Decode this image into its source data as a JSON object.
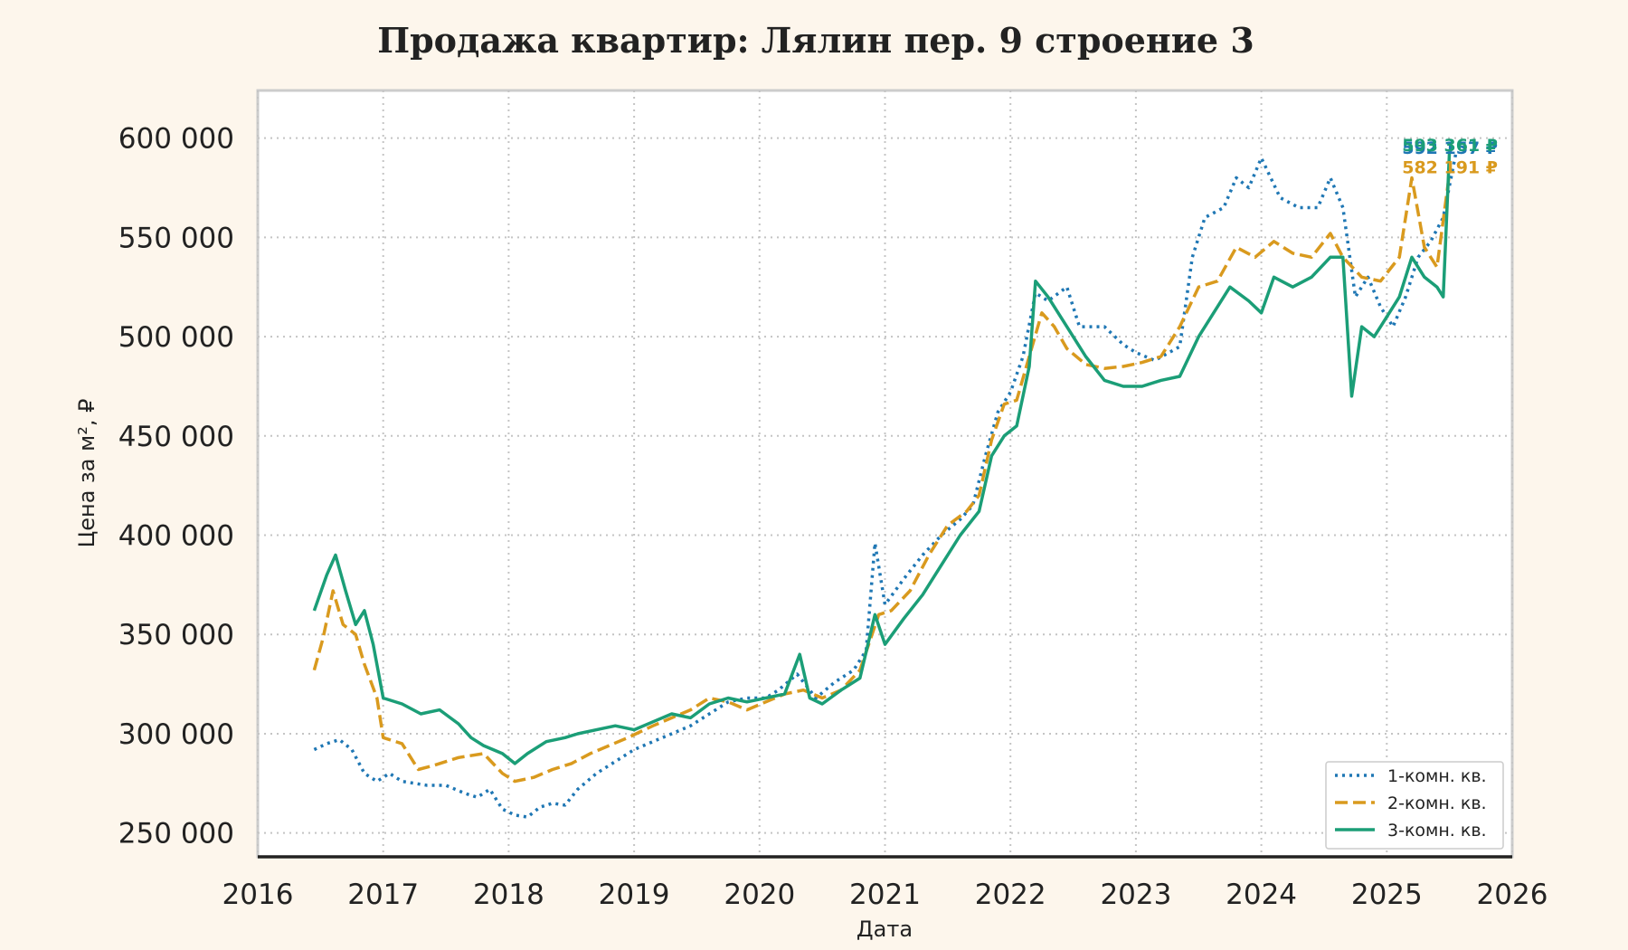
{
  "chart_data": {
    "type": "line",
    "title": "Продажа квартир: Лялин пер. 9 строение 3",
    "xlabel": "Дата",
    "ylabel": "Цена за м², ₽",
    "xlim": [
      2016.0,
      2026.0
    ],
    "ylim": [
      238000,
      624000
    ],
    "x_ticks": [
      2016,
      2017,
      2018,
      2019,
      2020,
      2021,
      2022,
      2023,
      2024,
      2025,
      2026
    ],
    "x_tick_labels": [
      "2016",
      "2017",
      "2018",
      "2019",
      "2020",
      "2021",
      "2022",
      "2023",
      "2024",
      "2025",
      "2026"
    ],
    "y_ticks": [
      250000,
      300000,
      350000,
      400000,
      450000,
      500000,
      550000,
      600000
    ],
    "y_tick_labels": [
      "250 000",
      "300 000",
      "350 000",
      "400 000",
      "450 000",
      "500 000",
      "550 000",
      "600 000"
    ],
    "grid": true,
    "legend_position": "bottom-right",
    "series": [
      {
        "name": "1-комн. кв.",
        "color": "#1f77b4",
        "style": "dotted",
        "end_label": "592 157 ₽",
        "points": [
          [
            2016.45,
            292000
          ],
          [
            2016.55,
            295000
          ],
          [
            2016.65,
            297000
          ],
          [
            2016.75,
            292000
          ],
          [
            2016.85,
            280000
          ],
          [
            2016.95,
            276000
          ],
          [
            2017.05,
            280000
          ],
          [
            2017.15,
            276000
          ],
          [
            2017.25,
            275000
          ],
          [
            2017.35,
            274000
          ],
          [
            2017.5,
            274000
          ],
          [
            2017.65,
            270000
          ],
          [
            2017.75,
            268000
          ],
          [
            2017.85,
            272000
          ],
          [
            2017.95,
            262000
          ],
          [
            2018.05,
            259000
          ],
          [
            2018.15,
            258000
          ],
          [
            2018.25,
            263000
          ],
          [
            2018.35,
            265000
          ],
          [
            2018.45,
            264000
          ],
          [
            2018.55,
            272000
          ],
          [
            2018.7,
            280000
          ],
          [
            2018.85,
            286000
          ],
          [
            2019.0,
            292000
          ],
          [
            2019.15,
            296000
          ],
          [
            2019.3,
            300000
          ],
          [
            2019.45,
            304000
          ],
          [
            2019.6,
            310000
          ],
          [
            2019.75,
            316000
          ],
          [
            2019.9,
            318000
          ],
          [
            2020.05,
            318000
          ],
          [
            2020.15,
            322000
          ],
          [
            2020.3,
            330000
          ],
          [
            2020.45,
            318000
          ],
          [
            2020.6,
            326000
          ],
          [
            2020.75,
            332000
          ],
          [
            2020.85,
            342000
          ],
          [
            2020.92,
            396000
          ],
          [
            2021.0,
            365000
          ],
          [
            2021.15,
            378000
          ],
          [
            2021.3,
            390000
          ],
          [
            2021.45,
            400000
          ],
          [
            2021.6,
            408000
          ],
          [
            2021.7,
            415000
          ],
          [
            2021.8,
            440000
          ],
          [
            2021.9,
            462000
          ],
          [
            2022.0,
            472000
          ],
          [
            2022.1,
            490000
          ],
          [
            2022.2,
            522000
          ],
          [
            2022.3,
            518000
          ],
          [
            2022.45,
            525000
          ],
          [
            2022.55,
            505000
          ],
          [
            2022.75,
            505000
          ],
          [
            2022.9,
            496000
          ],
          [
            2023.0,
            492000
          ],
          [
            2023.15,
            488000
          ],
          [
            2023.35,
            495000
          ],
          [
            2023.45,
            540000
          ],
          [
            2023.55,
            560000
          ],
          [
            2023.7,
            565000
          ],
          [
            2023.8,
            580000
          ],
          [
            2023.9,
            575000
          ],
          [
            2024.0,
            590000
          ],
          [
            2024.15,
            570000
          ],
          [
            2024.3,
            565000
          ],
          [
            2024.45,
            565000
          ],
          [
            2024.55,
            580000
          ],
          [
            2024.65,
            565000
          ],
          [
            2024.75,
            520000
          ],
          [
            2024.85,
            530000
          ],
          [
            2024.95,
            515000
          ],
          [
            2025.05,
            505000
          ],
          [
            2025.15,
            520000
          ],
          [
            2025.25,
            540000
          ],
          [
            2025.35,
            548000
          ],
          [
            2025.45,
            560000
          ],
          [
            2025.55,
            592157
          ]
        ]
      },
      {
        "name": "2-комн. кв.",
        "color": "#d99a1e",
        "style": "dashed",
        "end_label": "582 191 ₽",
        "points": [
          [
            2016.45,
            332000
          ],
          [
            2016.52,
            348000
          ],
          [
            2016.6,
            372000
          ],
          [
            2016.68,
            355000
          ],
          [
            2016.78,
            350000
          ],
          [
            2016.85,
            335000
          ],
          [
            2016.95,
            318000
          ],
          [
            2017.0,
            298000
          ],
          [
            2017.15,
            295000
          ],
          [
            2017.28,
            282000
          ],
          [
            2017.4,
            284000
          ],
          [
            2017.6,
            288000
          ],
          [
            2017.8,
            290000
          ],
          [
            2017.95,
            280000
          ],
          [
            2018.05,
            276000
          ],
          [
            2018.2,
            278000
          ],
          [
            2018.35,
            282000
          ],
          [
            2018.5,
            285000
          ],
          [
            2018.65,
            290000
          ],
          [
            2018.8,
            294000
          ],
          [
            2018.95,
            298000
          ],
          [
            2019.15,
            304000
          ],
          [
            2019.3,
            308000
          ],
          [
            2019.45,
            312000
          ],
          [
            2019.6,
            318000
          ],
          [
            2019.75,
            316000
          ],
          [
            2019.9,
            312000
          ],
          [
            2020.05,
            316000
          ],
          [
            2020.2,
            320000
          ],
          [
            2020.35,
            322000
          ],
          [
            2020.5,
            318000
          ],
          [
            2020.65,
            322000
          ],
          [
            2020.8,
            332000
          ],
          [
            2020.95,
            360000
          ],
          [
            2021.05,
            362000
          ],
          [
            2021.2,
            372000
          ],
          [
            2021.35,
            390000
          ],
          [
            2021.5,
            405000
          ],
          [
            2021.65,
            412000
          ],
          [
            2021.75,
            420000
          ],
          [
            2021.85,
            448000
          ],
          [
            2021.95,
            466000
          ],
          [
            2022.05,
            468000
          ],
          [
            2022.15,
            490000
          ],
          [
            2022.25,
            512000
          ],
          [
            2022.35,
            505000
          ],
          [
            2022.45,
            494000
          ],
          [
            2022.6,
            486000
          ],
          [
            2022.75,
            484000
          ],
          [
            2022.9,
            485000
          ],
          [
            2023.05,
            487000
          ],
          [
            2023.2,
            490000
          ],
          [
            2023.35,
            505000
          ],
          [
            2023.5,
            525000
          ],
          [
            2023.65,
            528000
          ],
          [
            2023.8,
            545000
          ],
          [
            2023.95,
            540000
          ],
          [
            2024.1,
            548000
          ],
          [
            2024.25,
            542000
          ],
          [
            2024.4,
            540000
          ],
          [
            2024.55,
            552000
          ],
          [
            2024.65,
            540000
          ],
          [
            2024.8,
            530000
          ],
          [
            2024.95,
            528000
          ],
          [
            2025.1,
            540000
          ],
          [
            2025.2,
            580000
          ],
          [
            2025.3,
            545000
          ],
          [
            2025.4,
            535000
          ],
          [
            2025.5,
            582191
          ]
        ]
      },
      {
        "name": "3-комн. кв.",
        "color": "#1b9e77",
        "style": "solid",
        "end_label": "593 361 ₽",
        "points": [
          [
            2016.45,
            362000
          ],
          [
            2016.55,
            380000
          ],
          [
            2016.62,
            390000
          ],
          [
            2016.7,
            372000
          ],
          [
            2016.78,
            355000
          ],
          [
            2016.85,
            362000
          ],
          [
            2016.92,
            345000
          ],
          [
            2017.0,
            318000
          ],
          [
            2017.15,
            315000
          ],
          [
            2017.3,
            310000
          ],
          [
            2017.45,
            312000
          ],
          [
            2017.6,
            305000
          ],
          [
            2017.7,
            298000
          ],
          [
            2017.8,
            294000
          ],
          [
            2017.95,
            290000
          ],
          [
            2018.05,
            285000
          ],
          [
            2018.15,
            290000
          ],
          [
            2018.3,
            296000
          ],
          [
            2018.45,
            298000
          ],
          [
            2018.55,
            300000
          ],
          [
            2018.7,
            302000
          ],
          [
            2018.85,
            304000
          ],
          [
            2019.0,
            302000
          ],
          [
            2019.15,
            306000
          ],
          [
            2019.3,
            310000
          ],
          [
            2019.45,
            308000
          ],
          [
            2019.6,
            315000
          ],
          [
            2019.75,
            318000
          ],
          [
            2019.9,
            316000
          ],
          [
            2020.05,
            318000
          ],
          [
            2020.2,
            320000
          ],
          [
            2020.32,
            340000
          ],
          [
            2020.4,
            318000
          ],
          [
            2020.5,
            315000
          ],
          [
            2020.65,
            322000
          ],
          [
            2020.8,
            328000
          ],
          [
            2020.92,
            360000
          ],
          [
            2021.0,
            345000
          ],
          [
            2021.15,
            358000
          ],
          [
            2021.3,
            370000
          ],
          [
            2021.45,
            385000
          ],
          [
            2021.6,
            400000
          ],
          [
            2021.75,
            412000
          ],
          [
            2021.85,
            440000
          ],
          [
            2021.95,
            450000
          ],
          [
            2022.05,
            455000
          ],
          [
            2022.15,
            485000
          ],
          [
            2022.2,
            528000
          ],
          [
            2022.3,
            520000
          ],
          [
            2022.45,
            505000
          ],
          [
            2022.6,
            490000
          ],
          [
            2022.75,
            478000
          ],
          [
            2022.9,
            475000
          ],
          [
            2023.05,
            475000
          ],
          [
            2023.2,
            478000
          ],
          [
            2023.35,
            480000
          ],
          [
            2023.5,
            500000
          ],
          [
            2023.6,
            510000
          ],
          [
            2023.75,
            525000
          ],
          [
            2023.9,
            518000
          ],
          [
            2024.0,
            512000
          ],
          [
            2024.1,
            530000
          ],
          [
            2024.25,
            525000
          ],
          [
            2024.4,
            530000
          ],
          [
            2024.55,
            540000
          ],
          [
            2024.65,
            540000
          ],
          [
            2024.72,
            470000
          ],
          [
            2024.8,
            505000
          ],
          [
            2024.9,
            500000
          ],
          [
            2025.0,
            510000
          ],
          [
            2025.1,
            520000
          ],
          [
            2025.2,
            540000
          ],
          [
            2025.3,
            530000
          ],
          [
            2025.4,
            525000
          ],
          [
            2025.45,
            520000
          ],
          [
            2025.5,
            593361
          ]
        ]
      }
    ]
  }
}
